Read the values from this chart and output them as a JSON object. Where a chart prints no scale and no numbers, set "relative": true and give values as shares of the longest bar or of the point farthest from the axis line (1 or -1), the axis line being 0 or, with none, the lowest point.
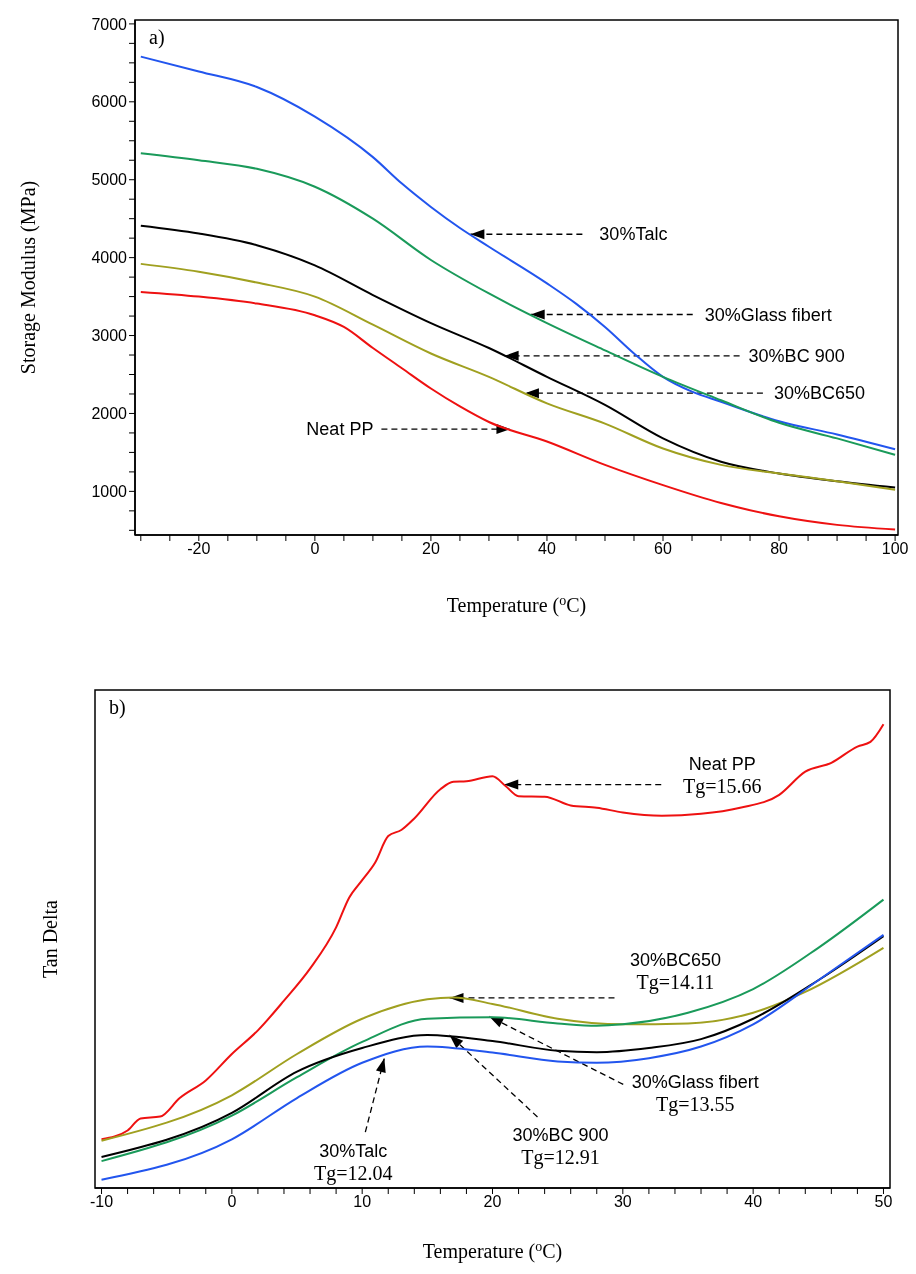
{
  "chart_data": [
    {
      "type": "line",
      "xlabel": "Temperature ($^{o}$C)",
      "ylabel": "Storage Modulus (MPa)",
      "xlim": [
        -31,
        100.5
      ],
      "ylim": [
        440,
        7050
      ],
      "xticks": [
        {
          "value": -30,
          "label": null
        },
        {
          "value": -25,
          "label": null
        },
        -20,
        {
          "value": -15,
          "label": null
        },
        {
          "value": -10,
          "label": null
        },
        {
          "value": -5,
          "label": null
        },
        0,
        {
          "value": 5,
          "label": null
        },
        {
          "value": 10,
          "label": null
        },
        {
          "value": 15,
          "label": null
        },
        20,
        {
          "value": 25,
          "label": null
        },
        {
          "value": 30,
          "label": null
        },
        {
          "value": 35,
          "label": null
        },
        40,
        {
          "value": 45,
          "label": null
        },
        {
          "value": 50,
          "label": null
        },
        {
          "value": 55,
          "label": null
        },
        60,
        {
          "value": 65,
          "label": null
        },
        {
          "value": 70,
          "label": null
        },
        {
          "value": 75,
          "label": null
        },
        80,
        {
          "value": 85,
          "label": null
        },
        {
          "value": 90,
          "label": null
        },
        {
          "value": 95,
          "label": null
        },
        100
      ],
      "yticks": [
        {
          "value": 500,
          "label": null
        },
        {
          "value": 750,
          "label": null
        },
        1000,
        {
          "value": 1250,
          "label": null
        },
        {
          "value": 1500,
          "label": null
        },
        {
          "value": 1750,
          "label": null
        },
        2000,
        {
          "value": 2250,
          "label": null
        },
        {
          "value": 2500,
          "label": null
        },
        {
          "value": 2750,
          "label": null
        },
        3000,
        {
          "value": 3250,
          "label": null
        },
        {
          "value": 3500,
          "label": null
        },
        {
          "value": 3750,
          "label": null
        },
        4000,
        {
          "value": 4250,
          "label": null
        },
        {
          "value": 4500,
          "label": null
        },
        {
          "value": 4750,
          "label": null
        },
        5000,
        {
          "value": 5250,
          "label": null
        },
        {
          "value": 5500,
          "label": null
        },
        {
          "value": 5750,
          "label": null
        },
        6000,
        {
          "value": 6250,
          "label": null
        },
        {
          "value": 6500,
          "label": null
        },
        {
          "value": 6750,
          "label": null
        },
        7000
      ],
      "series": [
        {
          "color": "#2255ee",
          "x": [
            -30,
            -20,
            -10,
            0,
            10,
            15,
            20,
            25,
            30,
            40,
            45,
            50,
            55,
            60,
            65,
            70,
            80,
            90,
            100
          ],
          "values": [
            6580,
            6390,
            6190,
            5810,
            5290,
            4950,
            4650,
            4380,
            4140,
            3670,
            3410,
            3110,
            2770,
            2470,
            2280,
            2150,
            1900,
            1730,
            1540
          ]
        },
        {
          "color": "#1a9a5a",
          "x": [
            -30,
            -20,
            -10,
            0,
            10,
            20,
            30,
            40,
            50,
            60,
            70,
            80,
            90,
            100
          ],
          "values": [
            5340,
            5250,
            5140,
            4910,
            4500,
            3970,
            3540,
            3160,
            2810,
            2470,
            2170,
            1880,
            1680,
            1470
          ]
        },
        {
          "color": "#000000",
          "x": [
            -30,
            -20,
            -10,
            0,
            10,
            20,
            30,
            40,
            50,
            60,
            70,
            80,
            90,
            100
          ],
          "values": [
            4410,
            4310,
            4160,
            3900,
            3520,
            3160,
            2840,
            2470,
            2110,
            1680,
            1380,
            1230,
            1130,
            1050
          ]
        },
        {
          "color": "#a0a020",
          "x": [
            -30,
            -20,
            -10,
            0,
            10,
            20,
            30,
            40,
            50,
            60,
            70,
            80,
            90,
            100
          ],
          "values": [
            3920,
            3820,
            3680,
            3500,
            3140,
            2770,
            2470,
            2130,
            1870,
            1550,
            1340,
            1230,
            1130,
            1020
          ]
        },
        {
          "color": "#ee1111",
          "x": [
            -30,
            -20,
            -10,
            0,
            5,
            10,
            15,
            20,
            25,
            30,
            40,
            50,
            60,
            70,
            80,
            90,
            100
          ],
          "values": [
            3560,
            3500,
            3410,
            3260,
            3110,
            2840,
            2580,
            2320,
            2090,
            1890,
            1640,
            1340,
            1080,
            850,
            680,
            570,
            510
          ]
        }
      ],
      "annotations": [
        "a)",
        {
          "text": "30%Talc",
          "x": 26.8,
          "y": 4300
        },
        {
          "text": "30%Glass fibert",
          "x": 37.2,
          "y": 3270
        },
        {
          "text": "30%BC 900",
          "x": 32.7,
          "y": 2740
        },
        {
          "text": "30%BC650",
          "x": 36.2,
          "y": 2260
        },
        {
          "text": "Neat PP",
          "x": 33.7,
          "y": 1800
        }
      ]
    },
    {
      "type": "line",
      "relative": true,
      "tick_labels": "x",
      "xlabel": "Temperature ($^{o}$C)",
      "ylabel": "Tan Delta",
      "xlim": [
        -10.5,
        50.5
      ],
      "xticks": [
        -10,
        {
          "value": -8,
          "label": null
        },
        {
          "value": -6,
          "label": null
        },
        {
          "value": -4,
          "label": null
        },
        {
          "value": -2,
          "label": null
        },
        0,
        {
          "value": 2,
          "label": null
        },
        {
          "value": 4,
          "label": null
        },
        {
          "value": 6,
          "label": null
        },
        {
          "value": 8,
          "label": null
        },
        10,
        {
          "value": 12,
          "label": null
        },
        {
          "value": 14,
          "label": null
        },
        {
          "value": 16,
          "label": null
        },
        {
          "value": 18,
          "label": null
        },
        20,
        {
          "value": 22,
          "label": null
        },
        {
          "value": 24,
          "label": null
        },
        {
          "value": 26,
          "label": null
        },
        {
          "value": 28,
          "label": null
        },
        30,
        {
          "value": 32,
          "label": null
        },
        {
          "value": 34,
          "label": null
        },
        {
          "value": 36,
          "label": null
        },
        {
          "value": 38,
          "label": null
        },
        40,
        {
          "value": 42,
          "label": null
        },
        {
          "value": 44,
          "label": null
        },
        {
          "value": 46,
          "label": null
        },
        {
          "value": 48,
          "label": null
        },
        50
      ],
      "series": [
        {
          "color": "#ee1111",
          "x": [
            -10,
            -8,
            -7,
            -5.5,
            -4,
            -2,
            0,
            2,
            4,
            6,
            8,
            9,
            10,
            11,
            12,
            13,
            14,
            16,
            17,
            18,
            20,
            21,
            22,
            24,
            26,
            28,
            30,
            33,
            36,
            39,
            42,
            44,
            46,
            48,
            49,
            50
          ],
          "values": [
            0.105,
            0.124,
            0.15,
            0.154,
            0.194,
            0.232,
            0.289,
            0.34,
            0.404,
            0.473,
            0.562,
            0.626,
            0.664,
            0.702,
            0.759,
            0.772,
            0.797,
            0.86,
            0.876,
            0.877,
            0.888,
            0.867,
            0.845,
            0.844,
            0.825,
            0.82,
            0.81,
            0.803,
            0.807,
            0.82,
            0.848,
            0.898,
            0.917,
            0.952,
            0.962,
            1
          ]
        },
        {
          "color": "#a0a020",
          "x": [
            -10,
            0,
            5,
            10,
            15,
            17,
            20,
            25,
            30,
            35,
            40,
            44,
            50
          ],
          "values": [
            0.102,
            0.2,
            0.289,
            0.365,
            0.407,
            0.411,
            0.397,
            0.365,
            0.353,
            0.355,
            0.378,
            0.423,
            0.518
          ]
        },
        {
          "color": "#1a9a5a",
          "x": [
            -10,
            0,
            5,
            10,
            15,
            20,
            25,
            28,
            30,
            35,
            40,
            45,
            50
          ],
          "values": [
            0.058,
            0.156,
            0.239,
            0.315,
            0.365,
            0.368,
            0.355,
            0.35,
            0.353,
            0.378,
            0.429,
            0.518,
            0.622
          ]
        },
        {
          "color": "#000000",
          "x": [
            -10,
            0,
            5,
            10,
            15,
            20,
            25,
            28,
            32,
            36,
            40,
            45,
            50
          ],
          "values": [
            0.067,
            0.162,
            0.251,
            0.302,
            0.33,
            0.317,
            0.296,
            0.293,
            0.302,
            0.321,
            0.365,
            0.448,
            0.543
          ]
        },
        {
          "color": "#2255ee",
          "x": [
            -10,
            0,
            5,
            10,
            15,
            20,
            25,
            28,
            32,
            36,
            40,
            45,
            50
          ],
          "values": [
            0.018,
            0.105,
            0.194,
            0.27,
            0.305,
            0.292,
            0.273,
            0.27,
            0.28,
            0.305,
            0.353,
            0.448,
            0.546
          ]
        }
      ],
      "annotations": [
        "b)",
        {
          "text": "Neat PP\nTg=15.66",
          "x": 20.9,
          "y": 0.87
        },
        {
          "text": "30%BC650\nTg=14.11",
          "x": 16.7,
          "y": 0.41
        },
        {
          "text": "30%Glass fibert\nTg=13.55",
          "x": 19.75,
          "y": 0.37
        },
        {
          "text": "30%BC 900\nTg=12.91",
          "x": 16.7,
          "y": 0.33
        },
        {
          "text": "30%Talc\nTg=12.04",
          "x": 11.7,
          "y": 0.28
        }
      ]
    }
  ]
}
